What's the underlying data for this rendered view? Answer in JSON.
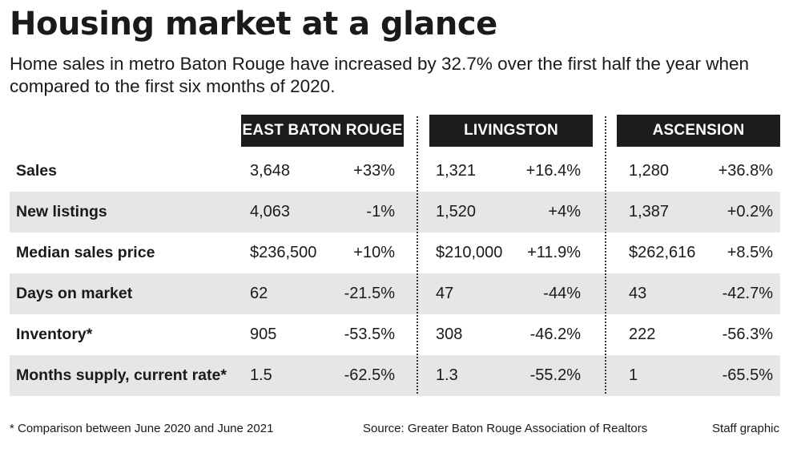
{
  "title": "Housing market at a glance",
  "subtitle": "Home sales in metro Baton Rouge have increased by 32.7% over the first half the year when compared to the first six months of 2020.",
  "columns": [
    "EAST BATON ROUGE",
    "LIVINGSTON",
    "ASCENSION"
  ],
  "rows": [
    {
      "label": "Sales",
      "values": [
        [
          "3,648",
          "+33%"
        ],
        [
          "1,321",
          "+16.4%"
        ],
        [
          "1,280",
          "+36.8%"
        ]
      ]
    },
    {
      "label": "New listings",
      "values": [
        [
          "4,063",
          "-1%"
        ],
        [
          "1,520",
          "+4%"
        ],
        [
          "1,387",
          "+0.2%"
        ]
      ]
    },
    {
      "label": "Median sales price",
      "values": [
        [
          "$236,500",
          "+10%"
        ],
        [
          "$210,000",
          "+11.9%"
        ],
        [
          "$262,616",
          "+8.5%"
        ]
      ]
    },
    {
      "label": "Days on market",
      "values": [
        [
          "62",
          "-21.5%"
        ],
        [
          "47",
          "-44%"
        ],
        [
          "43",
          "-42.7%"
        ]
      ]
    },
    {
      "label": "Inventory*",
      "values": [
        [
          "905",
          "-53.5%"
        ],
        [
          "308",
          "-46.2%"
        ],
        [
          "222",
          "-56.3%"
        ]
      ]
    },
    {
      "label": "Months supply, current rate*",
      "values": [
        [
          "1.5",
          "-62.5%"
        ],
        [
          "1.3",
          "-55.2%"
        ],
        [
          "1",
          "-65.5%"
        ]
      ]
    }
  ],
  "footer": {
    "note": "* Comparison between June 2020 and June 2021",
    "source": "Source: Greater Baton Rouge Association of Realtors",
    "credit": "Staff graphic"
  },
  "colors": {
    "header_bg": "#1c1c1c",
    "header_text": "#ffffff",
    "row_shade": "#e6e6e6"
  }
}
